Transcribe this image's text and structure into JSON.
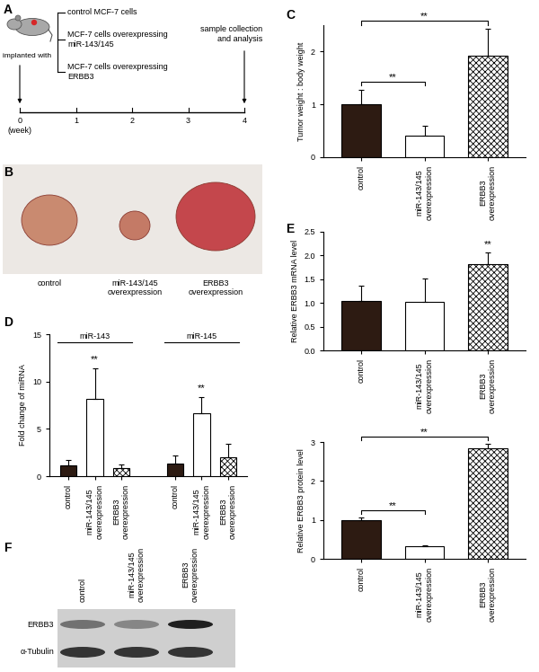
{
  "diagram": {
    "panel": "A",
    "start": "implanted with",
    "groups": [
      "control MCF-7 cells",
      "MCF-7 cells overexpressing\nmiR-143/145",
      "MCF-7 cells overexpressing\nERBB3"
    ],
    "end": "sample collection\nand analysis",
    "timeline": {
      "ticks": [
        0,
        1,
        2,
        3,
        4
      ],
      "unit": "(week)"
    }
  },
  "photo": {
    "panel": "B",
    "labels": [
      "control",
      "miR-143/145\noverexpression",
      "ERBB3\noverexpression"
    ]
  },
  "chart_data": [
    {
      "panel": "C",
      "type": "bar",
      "categories": [
        "control",
        "miR-143/145\noverexpression",
        "ERBB3\noverexpression"
      ],
      "values": [
        1.0,
        0.4,
        1.93
      ],
      "errors": [
        0.28,
        0.2,
        0.5
      ],
      "colors": [
        "#2d1b12",
        "#ffffff",
        "#ffffff"
      ],
      "y_label": "Tumor weight : body weight",
      "ylim": [
        0,
        2.5
      ],
      "yticks": [
        0,
        1,
        2
      ],
      "brackets": [
        {
          "from": 0,
          "to": 1,
          "text": "**"
        },
        {
          "from": 0,
          "to": 2,
          "text": "**"
        }
      ]
    },
    {
      "panel": "D",
      "type": "grouped_bar",
      "categories": [
        "control",
        "miR-143/145\noverexpression",
        "ERBB3\noverexpression"
      ],
      "colors": [
        "#2d1b12",
        "#ffffff",
        "#ffffff"
      ],
      "y_label": "Fold change of miRNA",
      "ylim": [
        0,
        15
      ],
      "yticks": [
        0,
        5,
        10,
        15
      ],
      "series": [
        {
          "name": "miR-143",
          "values": [
            1.1,
            8.2,
            0.9
          ],
          "errors": [
            0.6,
            3.2,
            0.3
          ],
          "significance": [
            null,
            "**",
            null
          ]
        },
        {
          "name": "miR-145",
          "values": [
            1.3,
            6.6,
            2.0
          ],
          "errors": [
            0.9,
            1.8,
            1.4
          ],
          "significance": [
            null,
            "**",
            null
          ]
        }
      ]
    },
    {
      "panel": "E",
      "type": "bar",
      "categories": [
        "control",
        "miR-143/145\noverexpression",
        "ERBB3\noverexpression"
      ],
      "values": [
        1.05,
        1.03,
        1.82
      ],
      "errors": [
        0.32,
        0.48,
        0.25
      ],
      "colors": [
        "#2d1b12",
        "#ffffff",
        "#ffffff"
      ],
      "y_label": "Relative ERBB3 mRNA level",
      "ylim": [
        0,
        2.5
      ],
      "yticks": [
        {
          "value": 0,
          "label": "0.0"
        },
        {
          "value": 0.5,
          "label": "0.5"
        },
        {
          "value": 1,
          "label": "1.0"
        },
        {
          "value": 1.5,
          "label": "1.5"
        },
        {
          "value": 2,
          "label": "2.0"
        },
        {
          "value": 2.5,
          "label": "2.5"
        }
      ],
      "significance": [
        null,
        null,
        "**"
      ]
    },
    {
      "type": "bar",
      "categories": [
        "control",
        "miR-143/145\noverexpression",
        "ERBB3\noverexpression"
      ],
      "values": [
        1.0,
        0.33,
        2.83
      ],
      "errors": [
        0.06,
        0.02,
        0.12
      ],
      "colors": [
        "#2d1b12",
        "#ffffff",
        "#ffffff"
      ],
      "y_label": "Relative ERBB3 protein level",
      "ylim": [
        0,
        3
      ],
      "yticks": [
        0,
        1,
        2,
        3
      ],
      "brackets": [
        {
          "from": 0,
          "to": 1,
          "text": "**"
        },
        {
          "from": 0,
          "to": 2,
          "text": "**"
        }
      ]
    }
  ],
  "blot": {
    "panel": "F",
    "lanes": [
      "control",
      "miR-143/145\noverexpression",
      "ERBB3\noverexpression"
    ],
    "rows": [
      "ERBB3",
      "α-Tubulin"
    ]
  }
}
